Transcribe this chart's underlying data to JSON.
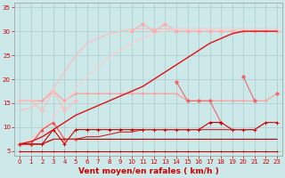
{
  "x": [
    0,
    1,
    2,
    3,
    4,
    5,
    6,
    7,
    8,
    9,
    10,
    11,
    12,
    13,
    14,
    15,
    16,
    17,
    18,
    19,
    20,
    21,
    22,
    23
  ],
  "series": [
    {
      "color": "#ffaaaa",
      "linewidth": 0.8,
      "marker": "D",
      "markersize": 2,
      "markevery": 1,
      "y": [
        null,
        null,
        null,
        null,
        null,
        null,
        null,
        null,
        null,
        null,
        30.0,
        31.5,
        30.0,
        31.5,
        30.0,
        30.0,
        30.0,
        30.0,
        30.0,
        30.0,
        30.0,
        30.0,
        30.0,
        30.0
      ]
    },
    {
      "color": "#ffbbbb",
      "linewidth": 0.8,
      "marker": null,
      "markersize": 0,
      "markevery": 1,
      "y": [
        13.5,
        14.0,
        15.5,
        18.0,
        21.5,
        25.0,
        27.5,
        28.5,
        29.5,
        30.0,
        30.5,
        30.5,
        30.5,
        30.5,
        30.5,
        30.5,
        30.5,
        30.5,
        30.5,
        30.5,
        30.5,
        30.5,
        30.5,
        30.5
      ]
    },
    {
      "color": "#ff9999",
      "linewidth": 0.8,
      "marker": "+",
      "markersize": 3,
      "markevery": 1,
      "y": [
        15.5,
        15.5,
        15.5,
        17.5,
        15.5,
        17.0,
        17.0,
        17.0,
        17.0,
        17.0,
        17.0,
        17.0,
        17.0,
        17.0,
        17.0,
        15.5,
        15.5,
        15.5,
        15.5,
        15.5,
        15.5,
        15.5,
        15.5,
        17.0
      ]
    },
    {
      "color": "#ffbbbb",
      "linewidth": 0.8,
      "marker": "D",
      "markersize": 2,
      "markevery": 1,
      "y": [
        15.5,
        15.5,
        13.5,
        17.5,
        13.5,
        15.5,
        null,
        null,
        null,
        null,
        null,
        null,
        null,
        null,
        null,
        null,
        null,
        null,
        null,
        null,
        null,
        null,
        null,
        null
      ]
    },
    {
      "color": "#ffcccc",
      "linewidth": 0.8,
      "marker": null,
      "markersize": 0,
      "markevery": 1,
      "y": [
        6.5,
        7.5,
        9.5,
        12.0,
        15.0,
        18.0,
        20.5,
        22.5,
        24.5,
        26.0,
        27.5,
        28.5,
        29.5,
        30.0,
        30.5,
        30.5,
        30.5,
        30.5,
        30.5,
        30.5,
        30.5,
        30.5,
        30.5,
        30.5
      ]
    },
    {
      "color": "#ee6666",
      "linewidth": 0.8,
      "marker": "D",
      "markersize": 2,
      "markevery": 1,
      "y": [
        null,
        null,
        null,
        null,
        null,
        null,
        null,
        null,
        null,
        null,
        null,
        null,
        null,
        null,
        19.5,
        15.5,
        15.5,
        15.5,
        11.0,
        null,
        20.5,
        15.5,
        null,
        17.0
      ]
    },
    {
      "color": "#cc0000",
      "linewidth": 0.8,
      "marker": "+",
      "markersize": 3,
      "markevery": 1,
      "y": [
        6.5,
        6.5,
        6.5,
        9.5,
        6.5,
        9.5,
        9.5,
        9.5,
        9.5,
        9.5,
        9.5,
        9.5,
        9.5,
        9.5,
        9.5,
        9.5,
        9.5,
        11.0,
        11.0,
        9.5,
        9.5,
        9.5,
        11.0,
        11.0
      ]
    },
    {
      "color": "#ff4444",
      "linewidth": 0.8,
      "marker": "^",
      "markersize": 2,
      "markevery": 1,
      "y": [
        6.5,
        6.5,
        9.5,
        11.0,
        7.5,
        7.5,
        null,
        null,
        null,
        null,
        null,
        null,
        null,
        null,
        null,
        null,
        null,
        null,
        null,
        null,
        null,
        null,
        null,
        null
      ]
    },
    {
      "color": "#aa0000",
      "linewidth": 0.8,
      "marker": null,
      "markersize": 0,
      "markevery": 1,
      "y": [
        6.5,
        6.5,
        6.5,
        7.5,
        7.5,
        7.5,
        7.5,
        7.5,
        7.5,
        7.5,
        7.5,
        7.5,
        7.5,
        7.5,
        7.5,
        7.5,
        7.5,
        7.5,
        7.5,
        7.5,
        7.5,
        7.5,
        7.5,
        7.5
      ]
    },
    {
      "color": "#cc2222",
      "linewidth": 0.8,
      "marker": null,
      "markersize": 0,
      "markevery": 1,
      "y": [
        6.5,
        6.5,
        6.5,
        7.5,
        7.5,
        7.5,
        8.0,
        8.0,
        8.5,
        9.0,
        9.0,
        9.5,
        9.5,
        9.5,
        9.5,
        9.5,
        9.5,
        9.5,
        9.5,
        9.5,
        9.5,
        9.5,
        11.0,
        11.0
      ]
    },
    {
      "color": "#dd1111",
      "linewidth": 1.0,
      "marker": null,
      "markersize": 0,
      "markevery": 1,
      "y": [
        6.5,
        7.0,
        8.0,
        9.5,
        11.0,
        12.5,
        13.5,
        14.5,
        15.5,
        16.5,
        17.5,
        18.5,
        20.0,
        21.5,
        23.0,
        24.5,
        26.0,
        27.5,
        28.5,
        29.5,
        30.0,
        30.0,
        30.0,
        30.0
      ]
    },
    {
      "color": "#cc0000",
      "linewidth": 0.8,
      "marker": "+",
      "markersize": 2,
      "markevery": 1,
      "y": [
        5.0,
        5.0,
        5.0,
        5.0,
        5.0,
        5.0,
        5.0,
        5.0,
        5.0,
        5.0,
        5.0,
        5.0,
        5.0,
        5.0,
        5.0,
        5.0,
        5.0,
        5.0,
        5.0,
        5.0,
        5.0,
        5.0,
        5.0,
        5.0
      ]
    }
  ],
  "xlabel": "Vent moyen/en rafales ( km/h )",
  "xlim_min": -0.5,
  "xlim_max": 23.5,
  "ylim_min": 4,
  "ylim_max": 36,
  "yticks": [
    5,
    10,
    15,
    20,
    25,
    30,
    35
  ],
  "xticks": [
    0,
    1,
    2,
    3,
    4,
    5,
    6,
    7,
    8,
    9,
    10,
    11,
    12,
    13,
    14,
    15,
    16,
    17,
    18,
    19,
    20,
    21,
    22,
    23
  ],
  "bg_color": "#cce8e8",
  "grid_color": "#aacccc",
  "xlabel_color": "#cc0000",
  "tick_color": "#cc0000",
  "tick_fontsize": 5,
  "xlabel_fontsize": 6.5
}
